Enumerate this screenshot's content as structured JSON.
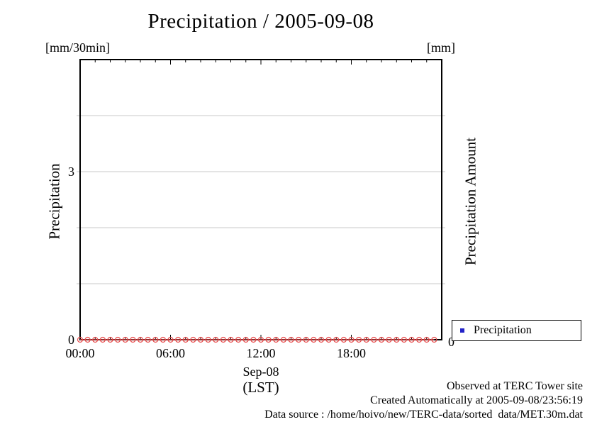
{
  "title": "Precipitation / 2005-09-08",
  "axes": {
    "left": {
      "unit": "[mm/30min]",
      "label": "Precipitation",
      "ticks": [
        {
          "value": 3,
          "label": "3"
        },
        {
          "value": 0,
          "label": "0"
        }
      ]
    },
    "right": {
      "unit": "[mm]",
      "label": "Precipitation Amount",
      "ticks": [
        {
          "value": 0,
          "label": "0"
        }
      ]
    },
    "x": {
      "date_label": "Sep-08",
      "timezone_label": "(LST)",
      "ticks": [
        {
          "hour": 0,
          "label": "00:00"
        },
        {
          "hour": 6,
          "label": "06:00"
        },
        {
          "hour": 12,
          "label": "12:00"
        },
        {
          "hour": 18,
          "label": "18:00"
        }
      ]
    }
  },
  "legend": {
    "items": [
      {
        "label": "Precipitation",
        "marker": "filled-square",
        "marker_color": "#2323c8"
      }
    ]
  },
  "footer": {
    "lines": [
      "Observed at TERC Tower site",
      "Created Automatically at 2005-09-08/23:56:19",
      "Data source : /home/hoivo/new/TERC-data/sorted  data/MET.30m.dat"
    ]
  },
  "chart_data": {
    "type": "line",
    "title": "Precipitation / 2005-09-08",
    "xlabel": "Sep-08 (LST)",
    "x_axis": {
      "range_hours": [
        0,
        24
      ],
      "minor_tick_hours": 1,
      "major_tick_hours": 6,
      "tick_label_hours": [
        0,
        6,
        12,
        18
      ],
      "tick_labels": [
        "00:00",
        "06:00",
        "12:00",
        "18:00"
      ]
    },
    "y_axis_left": {
      "label": "Precipitation",
      "unit": "mm/30min",
      "range": [
        0,
        5
      ],
      "labeled_ticks": [
        0,
        3
      ],
      "gridline_values": [
        1,
        2,
        3,
        4
      ],
      "grid": true,
      "grid_color": "#c8c8c8"
    },
    "y_axis_right": {
      "label": "Precipitation Amount",
      "unit": "mm",
      "labeled_ticks": [
        0
      ]
    },
    "legend_position": "outside-bottom-right",
    "series": [
      {
        "name": "Precipitation",
        "style": "linespoints",
        "marker": "open-circle",
        "color": "#e84c4c",
        "x_hours": [
          0,
          0.5,
          1,
          1.5,
          2,
          2.5,
          3,
          3.5,
          4,
          4.5,
          5,
          5.5,
          6,
          6.5,
          7,
          7.5,
          8,
          8.5,
          9,
          9.5,
          10,
          10.5,
          11,
          11.5,
          12,
          12.5,
          13,
          13.5,
          14,
          14.5,
          15,
          15.5,
          16,
          16.5,
          17,
          17.5,
          18,
          18.5,
          19,
          19.5,
          20,
          20.5,
          21,
          21.5,
          22,
          22.5,
          23,
          23.5
        ],
        "values": [
          0,
          0,
          0,
          0,
          0,
          0,
          0,
          0,
          0,
          0,
          0,
          0,
          0,
          0,
          0,
          0,
          0,
          0,
          0,
          0,
          0,
          0,
          0,
          0,
          0,
          0,
          0,
          0,
          0,
          0,
          0,
          0,
          0,
          0,
          0,
          0,
          0,
          0,
          0,
          0,
          0,
          0,
          0,
          0,
          0,
          0,
          0,
          0
        ]
      }
    ]
  }
}
